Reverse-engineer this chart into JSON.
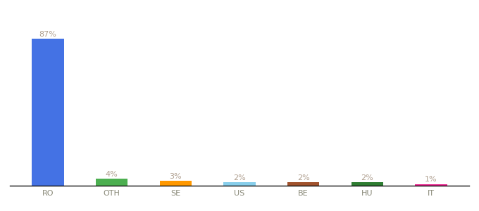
{
  "categories": [
    "RO",
    "OTH",
    "SE",
    "US",
    "BE",
    "HU",
    "IT"
  ],
  "values": [
    87,
    4,
    3,
    2,
    2,
    2,
    1
  ],
  "labels": [
    "87%",
    "4%",
    "3%",
    "2%",
    "2%",
    "2%",
    "1%"
  ],
  "bar_colors": [
    "#4472e4",
    "#4caf50",
    "#ff9800",
    "#87ceeb",
    "#a0522d",
    "#2e7d32",
    "#e91e8c"
  ],
  "background_color": "#ffffff",
  "label_color": "#b0a090",
  "label_fontsize": 8,
  "tick_fontsize": 8,
  "bar_width": 0.5
}
